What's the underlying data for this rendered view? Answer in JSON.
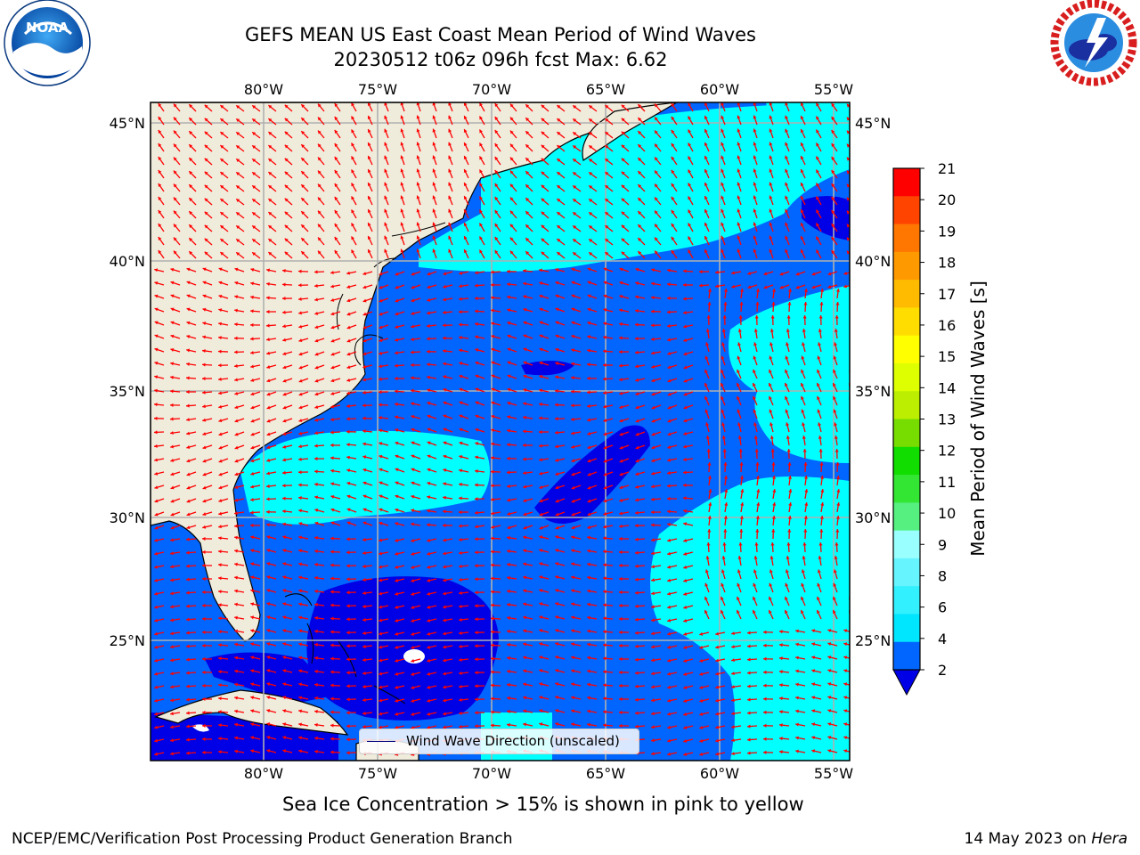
{
  "title_line1": "GEFS MEAN US East Coast Mean Period of Wind Waves",
  "title_line2": "20230512 t06z 096h fcst   Max: 6.62",
  "subtitle": "Sea Ice Concentration > 15% is shown in pink to yellow",
  "footer_left": "NCEP/EMC/Verification Post Processing Product Generation Branch",
  "footer_right_prefix": "14 May 2023 on ",
  "footer_right_host": "Hera",
  "legend_label": "Wind Wave Direction (unscaled)",
  "colorbar_label": "Mean Period of Wind Waves [s]",
  "colorbar_ticks": [
    "2",
    "4",
    "6",
    "8",
    "9",
    "10",
    "11",
    "12",
    "13",
    "14",
    "15",
    "16",
    "17",
    "18",
    "19",
    "20",
    "21"
  ],
  "colorbar_colors": [
    "#0066ff",
    "#00e6ff",
    "#33f0ff",
    "#66f5ff",
    "#99ffff",
    "#55f07f",
    "#33e633",
    "#11dd00",
    "#77dd00",
    "#bbee00",
    "#ddff00",
    "#ffff00",
    "#ffdd00",
    "#ffbb00",
    "#ff9900",
    "#ff7700",
    "#ff4400",
    "#ff0000"
  ],
  "colorbar_extend_color": "#0000e6",
  "lon_ticks": [
    "80°W",
    "75°W",
    "70°W",
    "65°W",
    "60°W",
    "55°W"
  ],
  "lat_ticks": [
    "45°N",
    "40°N",
    "35°N",
    "30°N",
    "25°N"
  ],
  "colors": {
    "land": "#efecdc",
    "period_2_4": "#0066ff",
    "period_4_6": "#00ffff",
    "period_under_2": "#0000e6",
    "arrows": "#ff0000",
    "grid": "#b0b0b0"
  },
  "logos": {
    "left": "NOAA",
    "right": "NATIONAL WEATHER SERVICE"
  }
}
